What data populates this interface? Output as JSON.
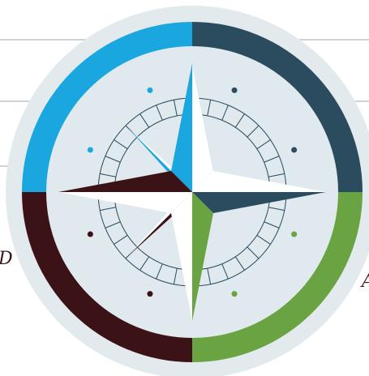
{
  "edge_letters": {
    "left": "D",
    "right": "A"
  },
  "colors": {
    "quadrant_top_left": "#1aa6df",
    "quadrant_top_right": "#2b4b5e",
    "quadrant_bottom_left": "#3b1216",
    "quadrant_bottom_right": "#6aa442",
    "disc": "#e0e9ed",
    "outer_ring": "#e3eaee",
    "lines": "#2b4b5e"
  },
  "dots": [
    {
      "quadrant": "top-left",
      "color": "#1aa6df"
    },
    {
      "quadrant": "top-left",
      "color": "#1aa6df"
    },
    {
      "quadrant": "top-right",
      "color": "#2b4b5e"
    },
    {
      "quadrant": "top-right",
      "color": "#2b4b5e"
    },
    {
      "quadrant": "bottom-left",
      "color": "#3b1216"
    },
    {
      "quadrant": "bottom-left",
      "color": "#3b1216"
    },
    {
      "quadrant": "bottom-right",
      "color": "#6aa442"
    },
    {
      "quadrant": "bottom-right",
      "color": "#6aa442"
    }
  ]
}
